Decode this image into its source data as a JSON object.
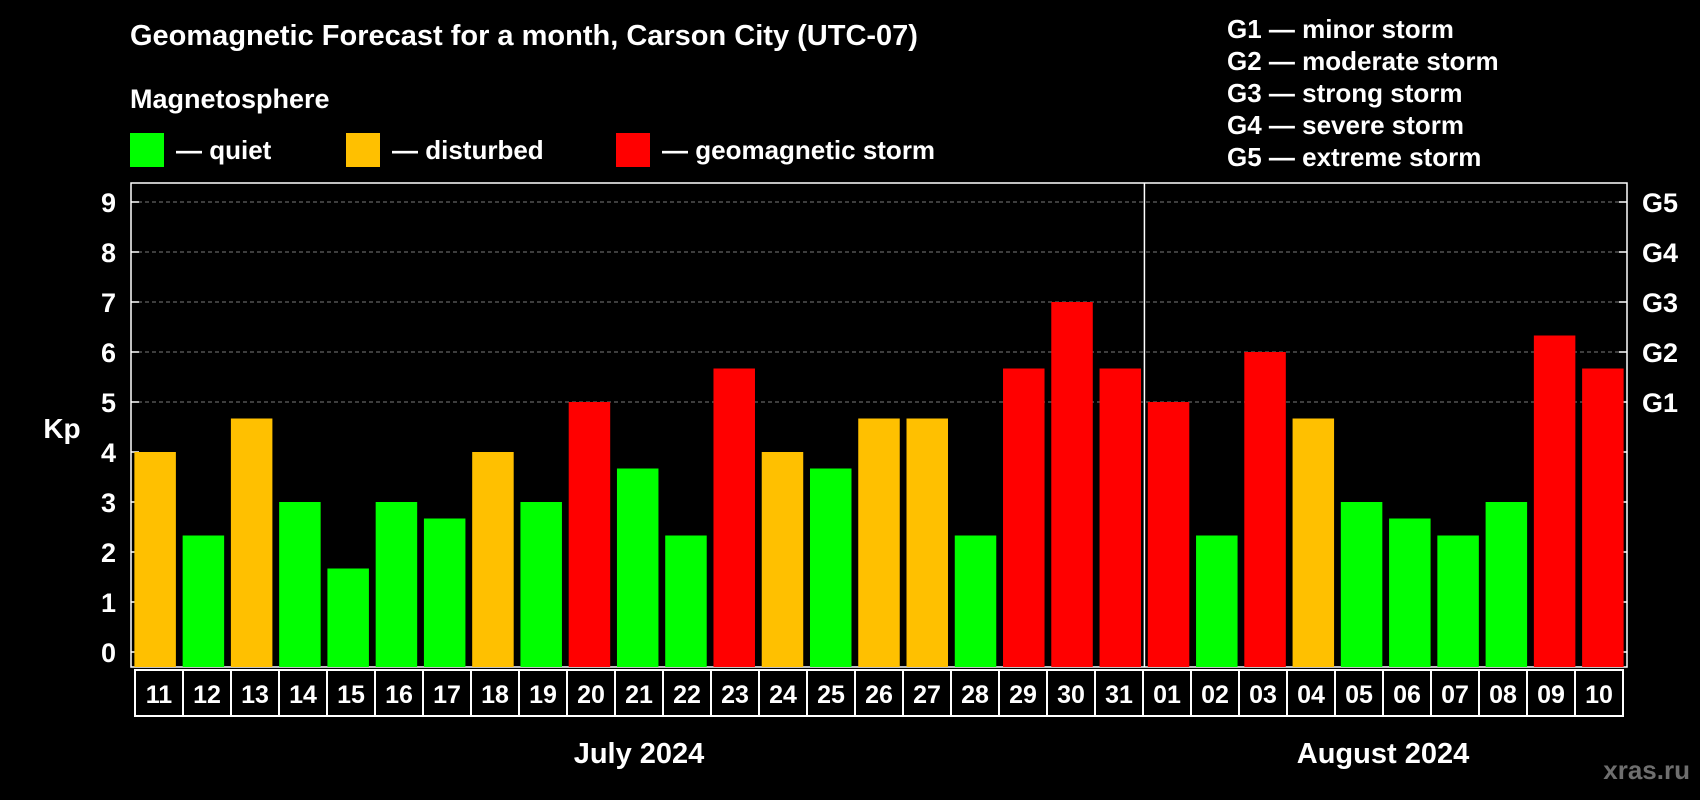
{
  "chart_data": {
    "type": "bar",
    "title": "Geomagnetic Forecast for a month, Carson City (UTC-07)",
    "ylabel": "Kp",
    "ylim": [
      0,
      9
    ],
    "yticks": [
      "0",
      "1",
      "2",
      "3",
      "4",
      "5",
      "6",
      "7",
      "8",
      "9"
    ],
    "right_ticks": [
      {
        "value": 5,
        "label": "G1"
      },
      {
        "value": 6,
        "label": "G2"
      },
      {
        "value": 7,
        "label": "G3"
      },
      {
        "value": 8,
        "label": "G4"
      },
      {
        "value": 9,
        "label": "G5"
      }
    ],
    "categories": [
      "11",
      "12",
      "13",
      "14",
      "15",
      "16",
      "17",
      "18",
      "19",
      "20",
      "21",
      "22",
      "23",
      "24",
      "25",
      "26",
      "27",
      "28",
      "29",
      "30",
      "31",
      "01",
      "02",
      "03",
      "04",
      "05",
      "06",
      "07",
      "08",
      "09",
      "10"
    ],
    "values": [
      4,
      2.33,
      4.67,
      3,
      1.67,
      3,
      2.67,
      4,
      3,
      5,
      3.67,
      2.33,
      5.67,
      4,
      3.67,
      4.67,
      4.67,
      2.33,
      5.67,
      7,
      5.67,
      5,
      2.33,
      6,
      4.67,
      3,
      2.67,
      2.33,
      3,
      6.33,
      5.67
    ],
    "status": [
      "disturbed",
      "quiet",
      "disturbed",
      "quiet",
      "quiet",
      "quiet",
      "quiet",
      "disturbed",
      "quiet",
      "storm",
      "quiet",
      "quiet",
      "storm",
      "disturbed",
      "quiet",
      "disturbed",
      "disturbed",
      "quiet",
      "storm",
      "storm",
      "storm",
      "storm",
      "quiet",
      "storm",
      "disturbed",
      "quiet",
      "quiet",
      "quiet",
      "quiet",
      "storm",
      "storm"
    ],
    "months": [
      {
        "label": "July 2024",
        "count": 21
      },
      {
        "label": "August 2024",
        "count": 10
      }
    ],
    "colors": {
      "quiet": "#00ff00",
      "disturbed": "#ffc000",
      "storm": "#ff0000"
    },
    "grid": true
  },
  "legend": {
    "heading": "Magnetosphere",
    "items": [
      {
        "key": "quiet",
        "label": "— quiet",
        "color": "#00ff00"
      },
      {
        "key": "disturbed",
        "label": "— disturbed",
        "color": "#ffc000"
      },
      {
        "key": "storm",
        "label": "— geomagnetic storm",
        "color": "#ff0000"
      }
    ]
  },
  "storm_scale": [
    "G1 — minor storm",
    "G2 — moderate storm",
    "G3 — strong storm",
    "G4 — severe storm",
    "G5 — extreme storm"
  ],
  "watermark": "xras.ru"
}
